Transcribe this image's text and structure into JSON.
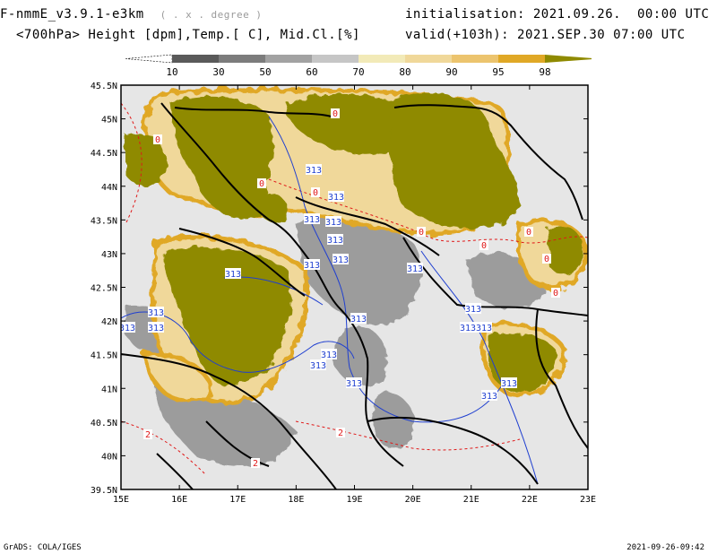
{
  "header": {
    "model": "F-nmmE_v3.9.1-e3km",
    "grid_note": "( . x . degree )",
    "level": "<700hPa>",
    "fields": "Height [dpm],Temp.[ C], Mid.Cl.[%]",
    "init_label": "initialisation:",
    "init_value": "2021.09.26.  00:00 UTC",
    "valid_label": "valid(+103h):",
    "valid_value": "2021.SEP.30 07:00 UTC"
  },
  "colorbar": {
    "labels": [
      "10",
      "30",
      "50",
      "60",
      "70",
      "80",
      "90",
      "95",
      "98"
    ],
    "colors": [
      "#5a5a5a",
      "#7c7c7c",
      "#a2a2a2",
      "#c6c6c6",
      "#f2eab8",
      "#f0d89a",
      "#ecc46e",
      "#e0a826",
      "#8f8a00"
    ],
    "under_color": "#ffffff"
  },
  "map": {
    "lat_labels": [
      "45.5N",
      "45N",
      "44.5N",
      "44N",
      "43.5N",
      "43N",
      "42.5N",
      "42N",
      "41.5N",
      "41N",
      "40.5N",
      "40N",
      "39.5N"
    ],
    "lon_labels": [
      "15E",
      "16E",
      "17E",
      "18E",
      "19E",
      "20E",
      "21E",
      "22E",
      "23E"
    ],
    "height_contour_label": "313",
    "temp_contour_labels": [
      "0",
      "2"
    ],
    "colors": {
      "land_bg": "#e6e6e6",
      "cloud_high": "#8f8a00",
      "cloud_mid": "#e0a826",
      "cloud_light": "#f0d89a",
      "cloud_grey": "#9c9c9c",
      "height_line": "#1f3fd0",
      "temp_line": "#e01818",
      "border_line": "#000000"
    }
  },
  "footer": {
    "left": "GrADS: COLA/IGES",
    "right": "2021-09-26-09:42"
  }
}
